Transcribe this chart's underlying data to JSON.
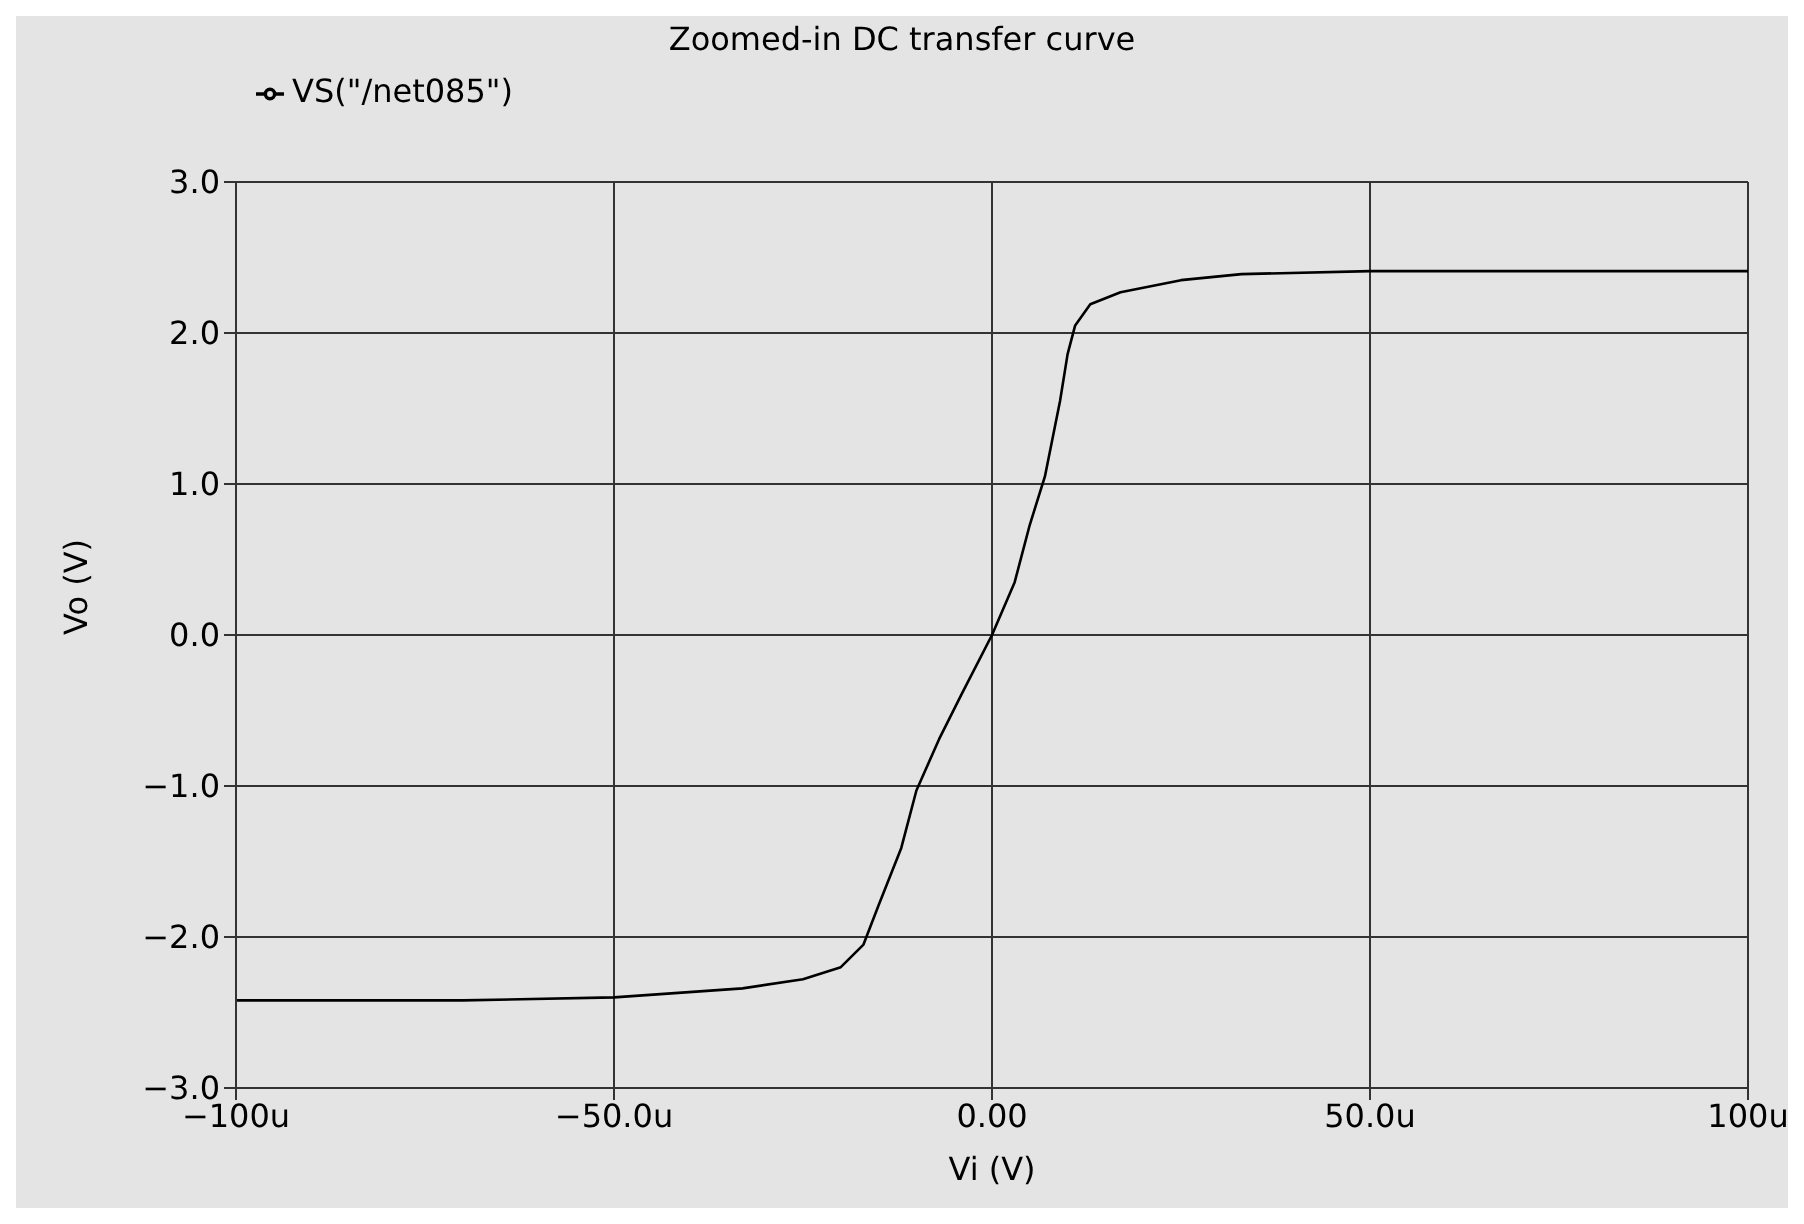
{
  "chart_data": {
    "type": "line",
    "title": "Zoomed-in DC transfer curve",
    "xlabel": "Vi (V)",
    "ylabel": "Vo (V)",
    "x": [
      -100,
      -70,
      -50,
      -33,
      -25,
      -20,
      -17,
      -15,
      -12,
      -10,
      -7,
      -4,
      0,
      3,
      5,
      7,
      9,
      10,
      11,
      13,
      17,
      25,
      33,
      50,
      67,
      100
    ],
    "series": [
      {
        "name": "VS(\"/net085\")",
        "color": "#000000",
        "values": [
          -2.42,
          -2.42,
          -2.4,
          -2.34,
          -2.28,
          -2.2,
          -2.05,
          -1.79,
          -1.41,
          -1.03,
          -0.69,
          -0.39,
          0,
          0.35,
          0.73,
          1.05,
          1.55,
          1.86,
          2.05,
          2.19,
          2.27,
          2.35,
          2.39,
          2.41,
          2.41,
          2.41
        ]
      }
    ],
    "xlim": [
      -100,
      100
    ],
    "xticks": [
      {
        "value": -100,
        "label": "−100u"
      },
      {
        "value": -50,
        "label": "−50.0u"
      },
      {
        "value": 0,
        "label": "0.00"
      },
      {
        "value": 50,
        "label": "50.0u"
      },
      {
        "value": 100,
        "label": "100u"
      }
    ],
    "ylim": [
      -3,
      3
    ],
    "yticks": [
      {
        "value": -3,
        "label": "−3.0"
      },
      {
        "value": -2,
        "label": "−2.0"
      },
      {
        "value": -1,
        "label": "−1.0"
      },
      {
        "value": 0,
        "label": "0.0"
      },
      {
        "value": 1,
        "label": "1.0"
      },
      {
        "value": 2,
        "label": "2.0"
      },
      {
        "value": 3,
        "label": "3.0"
      }
    ],
    "grid": true,
    "legend": "top left",
    "marker": "none",
    "line_style": "solid"
  }
}
